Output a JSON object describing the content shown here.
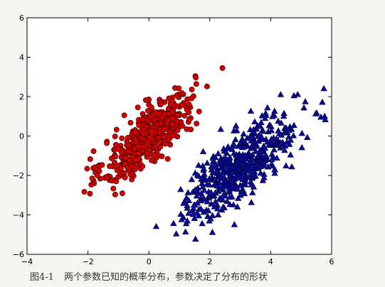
{
  "caption": {
    "figure_number": "图4-1",
    "text": "两个参数已知的概率分布，参数决定了分布的形状"
  },
  "chart_data": {
    "type": "scatter",
    "title": "",
    "xlabel": "",
    "ylabel": "",
    "xlim": [
      -4,
      6
    ],
    "ylim": [
      -6,
      6
    ],
    "xticks": [
      "−4",
      "−2",
      "0",
      "2",
      "4",
      "6"
    ],
    "yticks": [
      "−6",
      "−4",
      "−2",
      "0",
      "2",
      "4",
      "6"
    ],
    "grid": false,
    "series": [
      {
        "marker": "circle",
        "color": "#d40000",
        "edge_color": "#3a0000",
        "count": 500,
        "mean": [
          0.0,
          0.0
        ],
        "std": [
          0.75,
          1.15
        ],
        "correlation": 0.78
      },
      {
        "marker": "triangle",
        "color": "#0a0a9a",
        "edge_color": "#000033",
        "count": 500,
        "mean": [
          3.0,
          -1.5
        ],
        "std": [
          0.95,
          1.35
        ],
        "correlation": 0.78
      }
    ]
  }
}
